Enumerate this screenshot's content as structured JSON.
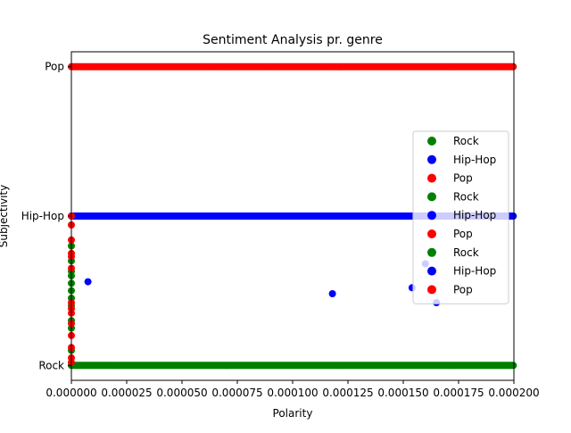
{
  "chart_data": {
    "type": "scatter",
    "title": "Sentiment Analysis pr. genre",
    "xlabel": "Polarity",
    "ylabel": "Subjectivity",
    "xlim": [
      0,
      0.0002
    ],
    "x_ticks": [
      0,
      2.5e-05,
      5e-05,
      7.5e-05,
      0.0001,
      0.000125,
      0.00015,
      0.000175,
      0.0002
    ],
    "x_tick_labels": [
      "0.000000",
      "0.000025",
      "0.000050",
      "0.000075",
      "0.000100",
      "0.000125",
      "0.000150",
      "0.000175",
      "0.000200"
    ],
    "y_categories": [
      "Rock",
      "Hip-Hop",
      "Pop"
    ],
    "ylim": [
      -0.1,
      2.1
    ],
    "grid": false,
    "legend": {
      "placement": "center-right",
      "entries": [
        "Rock",
        "Hip-Hop",
        "Pop",
        "Rock",
        "Hip-Hop",
        "Pop",
        "Rock",
        "Hip-Hop",
        "Pop"
      ]
    },
    "series": [
      {
        "name": "Rock",
        "color": "#008000",
        "band_y": 0,
        "band_x_range": [
          0,
          0.0002
        ],
        "extra_points": [
          {
            "x": 0,
            "y": 0.1
          },
          {
            "x": 0,
            "y": 0.25
          },
          {
            "x": 0,
            "y": 0.3
          },
          {
            "x": 0,
            "y": 0.4
          },
          {
            "x": 0,
            "y": 0.45
          },
          {
            "x": 0,
            "y": 0.5
          },
          {
            "x": 0,
            "y": 0.55
          },
          {
            "x": 0,
            "y": 0.6
          },
          {
            "x": 0,
            "y": 0.63
          },
          {
            "x": 0,
            "y": 0.7
          },
          {
            "x": 0,
            "y": 0.8
          }
        ]
      },
      {
        "name": "Hip-Hop",
        "color": "#0000ff",
        "band_y": 1,
        "band_x_range": [
          0,
          0.0002
        ],
        "extra_points": [
          {
            "x": 7.5e-06,
            "y": 0.56
          },
          {
            "x": 0.000118,
            "y": 0.48
          },
          {
            "x": 0.000154,
            "y": 0.52
          },
          {
            "x": 0.00016,
            "y": 0.68
          },
          {
            "x": 0.000165,
            "y": 0.42
          }
        ]
      },
      {
        "name": "Pop",
        "color": "#ff0000",
        "band_y": 2,
        "band_x_range": [
          0,
          0.0002
        ],
        "extra_points": [
          {
            "x": 0,
            "y": 0.02
          },
          {
            "x": 0,
            "y": 0.05
          },
          {
            "x": 0,
            "y": 0.12
          },
          {
            "x": 0,
            "y": 0.2
          },
          {
            "x": 0,
            "y": 0.28
          },
          {
            "x": 0,
            "y": 0.35
          },
          {
            "x": 0,
            "y": 0.38
          },
          {
            "x": 0,
            "y": 0.42
          },
          {
            "x": 0,
            "y": 0.65
          },
          {
            "x": 0,
            "y": 0.73
          },
          {
            "x": 0,
            "y": 0.75
          },
          {
            "x": 0,
            "y": 0.84
          },
          {
            "x": 0,
            "y": 0.94
          },
          {
            "x": 0,
            "y": 1.0
          }
        ]
      }
    ]
  }
}
